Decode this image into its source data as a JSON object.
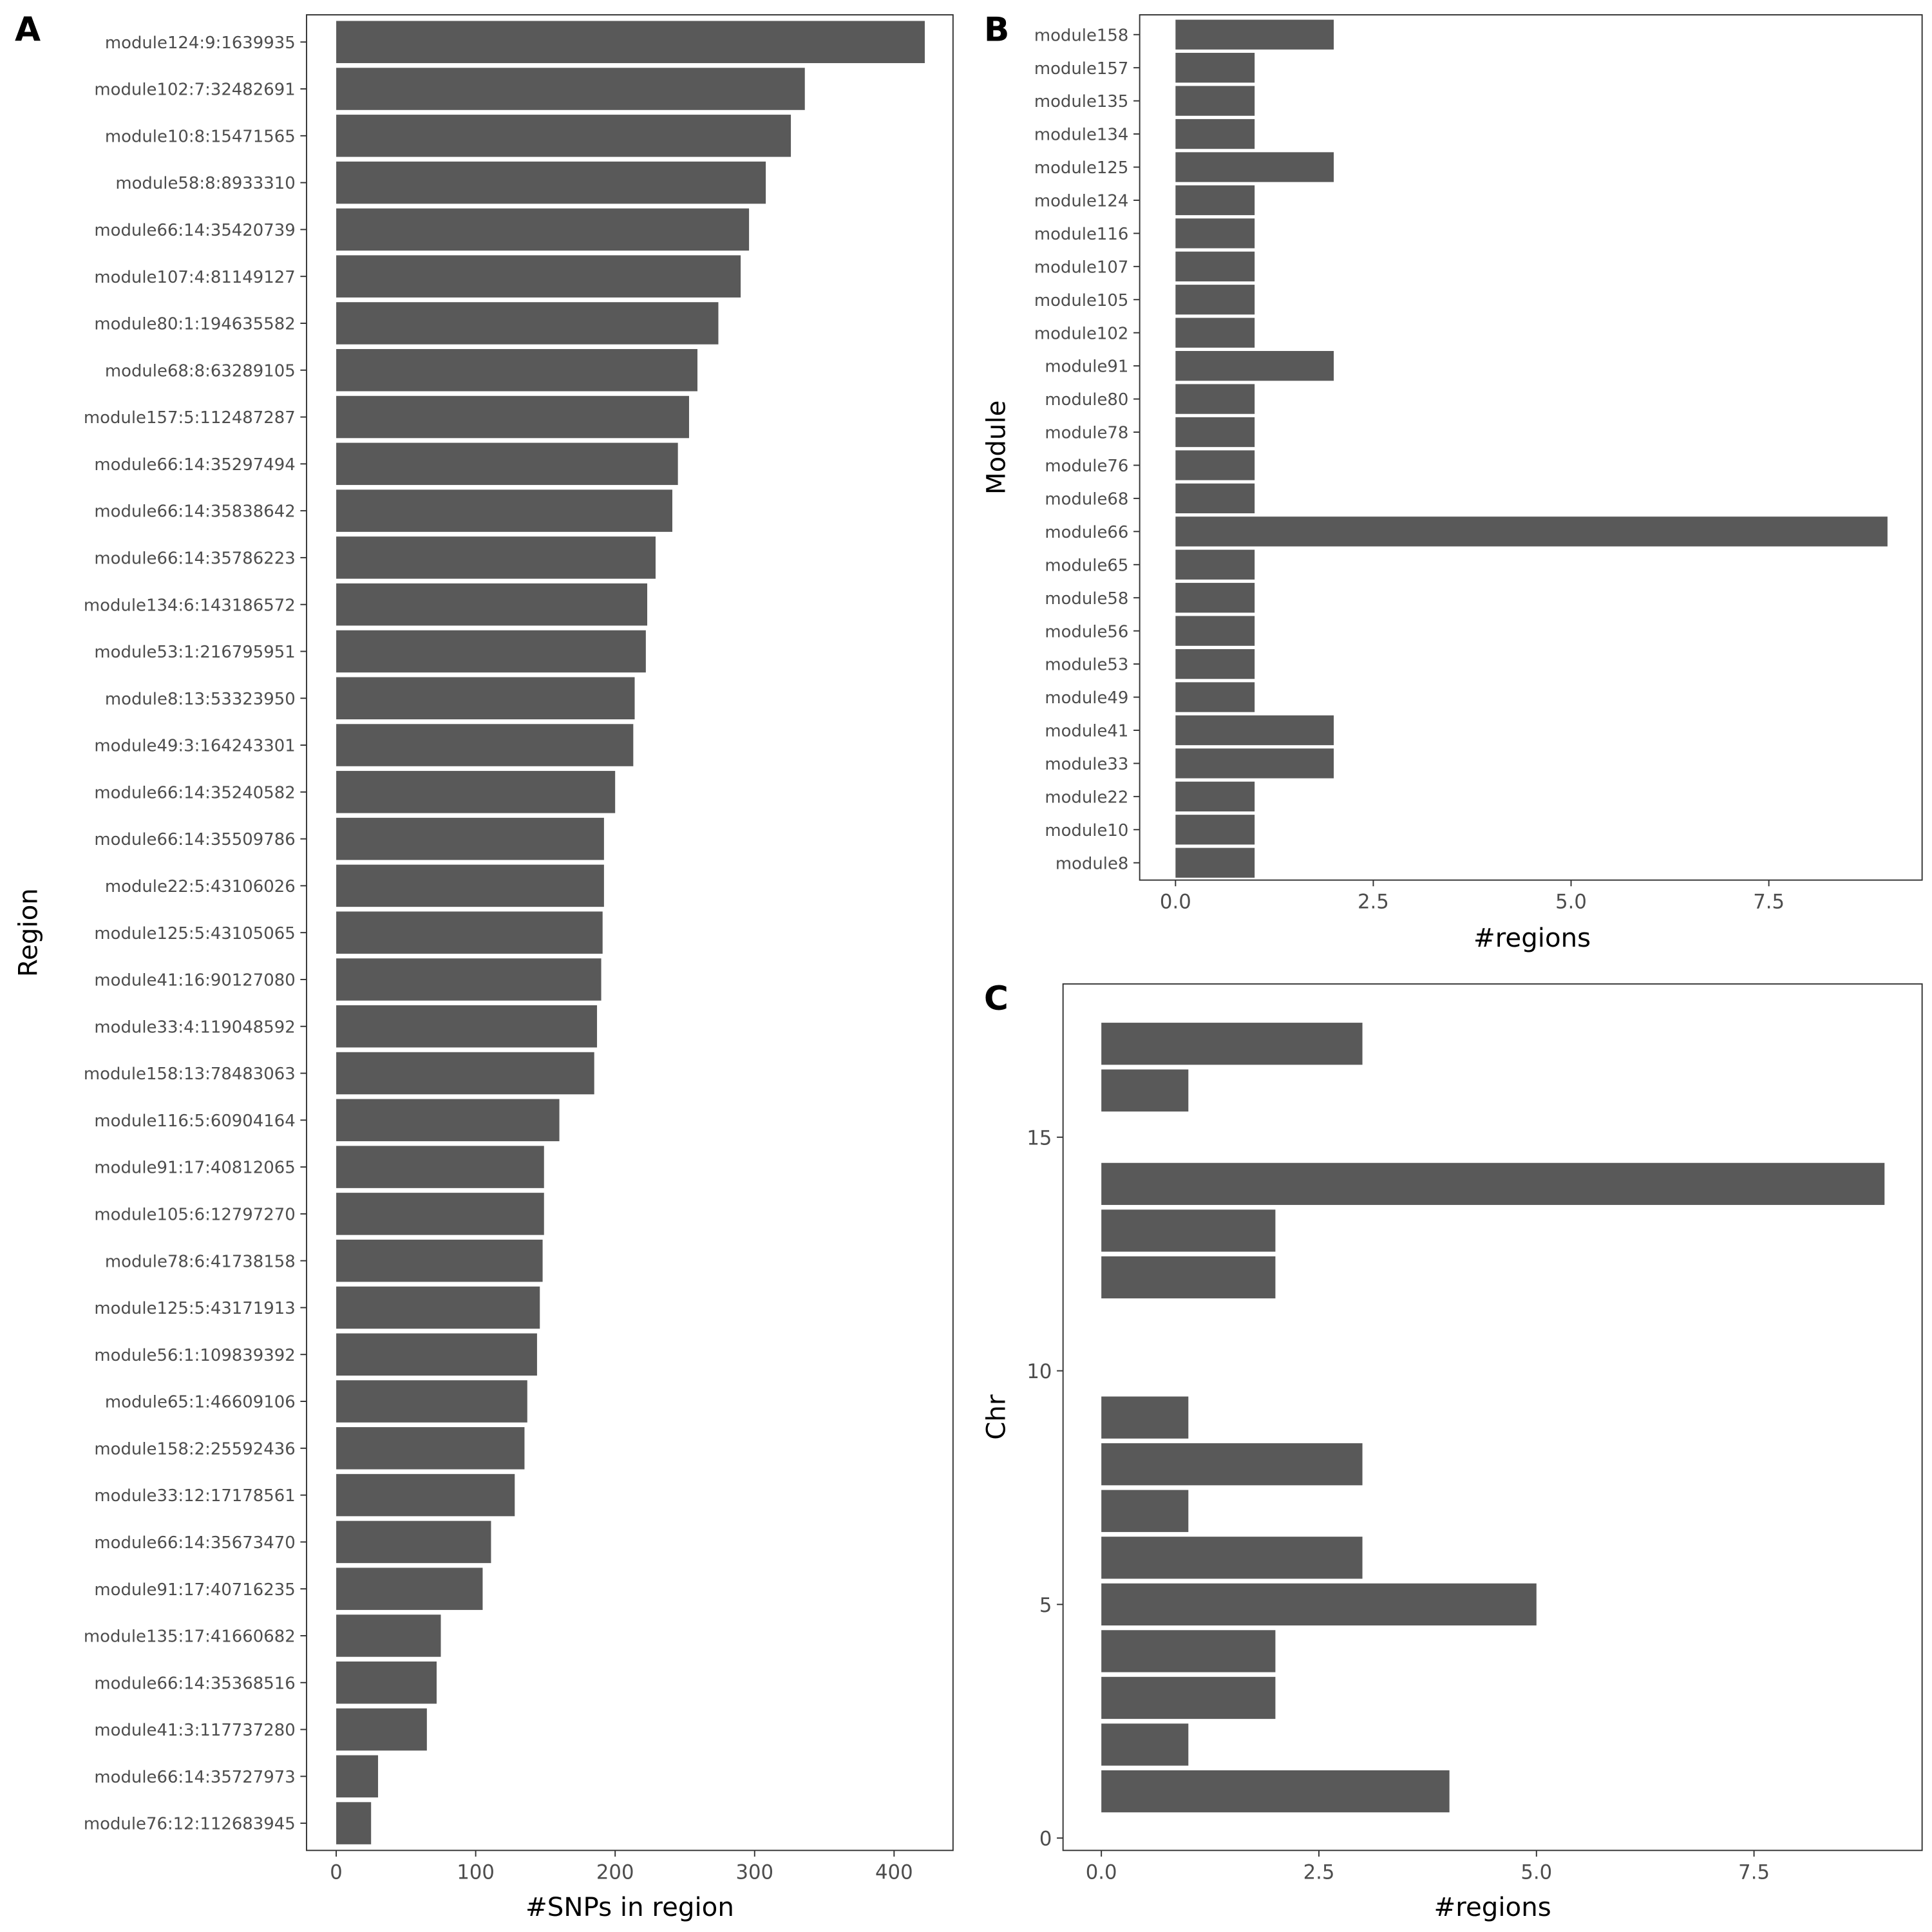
{
  "chart_data": [
    {
      "panel": "A",
      "type": "bar",
      "orientation": "horizontal",
      "xlabel": "#SNPs in region",
      "ylabel": "Region",
      "xlim": [
        0,
        440
      ],
      "xticks": [
        0,
        100,
        200,
        300,
        400
      ],
      "grid": false,
      "bar_color": "#595959",
      "categories": [
        "module124:9:1639935",
        "module102:7:32482691",
        "module10:8:15471565",
        "module58:8:8933310",
        "module66:14:35420739",
        "module107:4:81149127",
        "module80:1:194635582",
        "module68:8:63289105",
        "module157:5:112487287",
        "module66:14:35297494",
        "module66:14:35838642",
        "module66:14:35786223",
        "module134:6:143186572",
        "module53:1:216795951",
        "module8:13:53323950",
        "module49:3:164243301",
        "module66:14:35240582",
        "module66:14:35509786",
        "module22:5:43106026",
        "module125:5:43105065",
        "module41:16:90127080",
        "module33:4:119048592",
        "module158:13:78483063",
        "module116:5:60904164",
        "module91:17:40812065",
        "module105:6:12797270",
        "module78:6:41738158",
        "module125:5:43171913",
        "module56:1:109839392",
        "module65:1:46609106",
        "module158:2:25592436",
        "module33:12:17178561",
        "module66:14:35673470",
        "module91:17:40716235",
        "module135:17:41660682",
        "module66:14:35368516",
        "module41:3:117737280",
        "module66:14:35727973",
        "module76:12:112683945"
      ],
      "values": [
        422,
        336,
        326,
        308,
        296,
        290,
        274,
        259,
        253,
        245,
        241,
        229,
        223,
        222,
        214,
        213,
        200,
        192,
        192,
        191,
        190,
        187,
        185,
        160,
        149,
        149,
        148,
        146,
        144,
        137,
        135,
        128,
        111,
        105,
        75,
        72,
        65,
        30,
        25
      ]
    },
    {
      "panel": "B",
      "type": "bar",
      "orientation": "horizontal",
      "xlabel": "#regions",
      "ylabel": "Module",
      "xlim": [
        0,
        9.45
      ],
      "xticks": [
        "0.0",
        "2.5",
        "5.0",
        "7.5"
      ],
      "grid": false,
      "bar_color": "#595959",
      "categories": [
        "module158",
        "module157",
        "module135",
        "module134",
        "module125",
        "module124",
        "module116",
        "module107",
        "module105",
        "module102",
        "module91",
        "module80",
        "module78",
        "module76",
        "module68",
        "module66",
        "module65",
        "module58",
        "module56",
        "module53",
        "module49",
        "module41",
        "module33",
        "module22",
        "module10",
        "module8"
      ],
      "values": [
        2,
        1,
        1,
        1,
        2,
        1,
        1,
        1,
        1,
        1,
        2,
        1,
        1,
        1,
        1,
        9,
        1,
        1,
        1,
        1,
        1,
        2,
        2,
        1,
        1,
        1
      ]
    },
    {
      "panel": "C",
      "type": "bar",
      "orientation": "horizontal",
      "xlabel": "#regions",
      "ylabel": "Chr",
      "xlim": [
        0,
        9.45
      ],
      "xticks": [
        "0.0",
        "2.5",
        "5.0",
        "7.5"
      ],
      "ylim": [
        0,
        17.5
      ],
      "yticks": [
        0,
        5,
        10,
        15
      ],
      "grid": false,
      "bar_color": "#595959",
      "chr": [
        1,
        2,
        3,
        4,
        5,
        6,
        7,
        8,
        9,
        12,
        13,
        14,
        16,
        17
      ],
      "values": [
        4,
        1,
        2,
        2,
        5,
        3,
        1,
        3,
        1,
        2,
        2,
        9,
        1,
        3
      ]
    }
  ]
}
